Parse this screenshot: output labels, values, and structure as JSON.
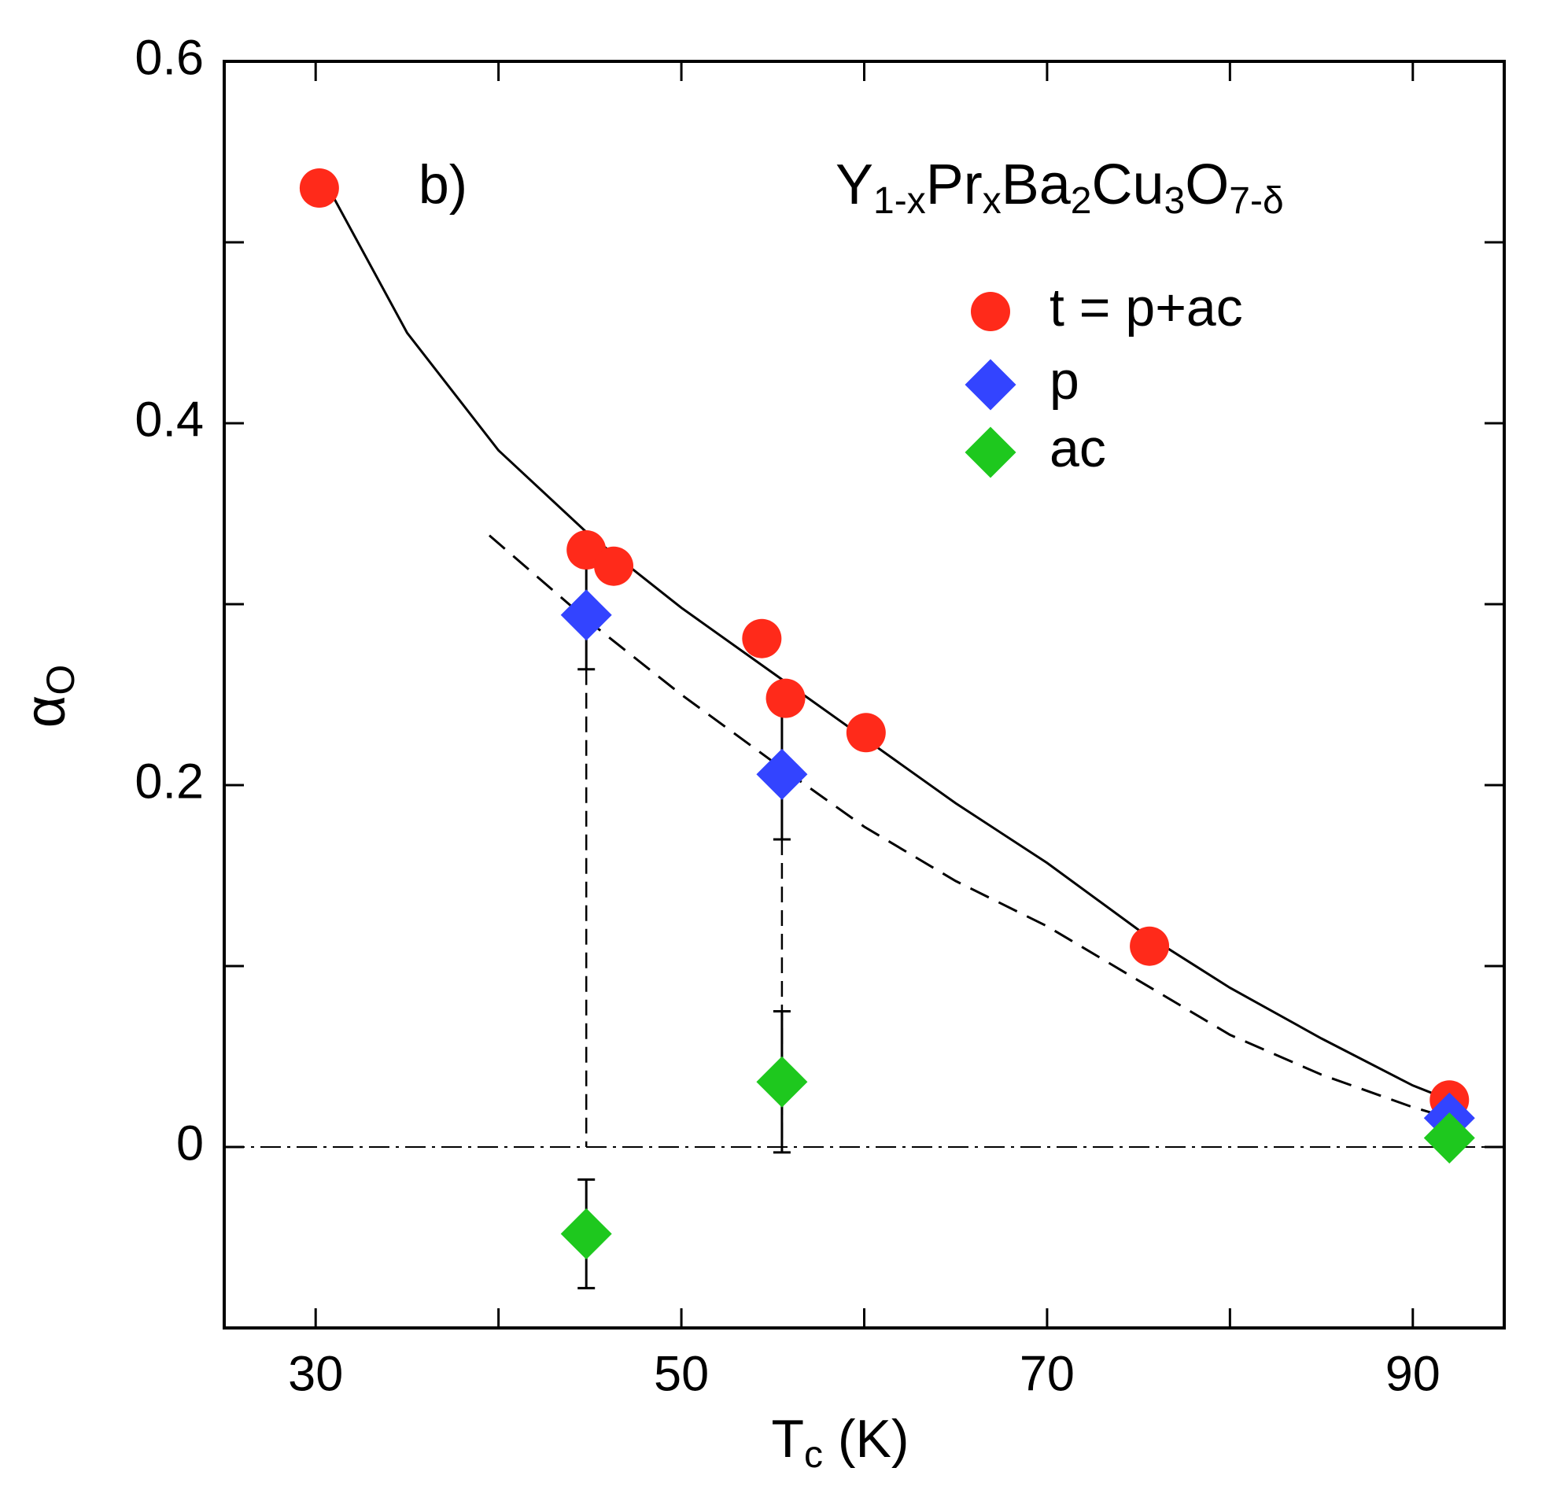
{
  "chart_data": {
    "type": "scatter",
    "panel_label": "b)",
    "formula_parts": [
      {
        "text": "Y",
        "sub": "1-x"
      },
      {
        "text": "Pr",
        "sub": "x"
      },
      {
        "text": "Ba",
        "sub": "2"
      },
      {
        "text": "Cu",
        "sub": "3"
      },
      {
        "text": "O",
        "sub": "7-δ"
      }
    ],
    "xlabel": {
      "text": "T",
      "sub": "c",
      "rest": " (K)"
    },
    "ylabel": {
      "text": "α",
      "sub": "O"
    },
    "xlim": [
      25,
      95
    ],
    "ylim": [
      -0.1,
      0.6
    ],
    "xticks": [
      30,
      50,
      70,
      90
    ],
    "xminor": [
      40,
      60,
      80
    ],
    "yticks": [
      0,
      0.2,
      0.4,
      0.6
    ],
    "yminor": [
      -0.1,
      0.1,
      0.3,
      0.5
    ],
    "zero_line": true,
    "series": [
      {
        "name": "t = p+ac",
        "color": "#ff2a1a",
        "marker": "circle",
        "x": [
          30.2,
          44.8,
          46.3,
          54.4,
          55.7,
          60.1,
          75.6,
          92.0
        ],
        "values": [
          0.53,
          0.33,
          0.321,
          0.281,
          0.248,
          0.229,
          0.111,
          0.026
        ]
      },
      {
        "name": "p",
        "color": "#3344ff",
        "marker": "diamond",
        "x": [
          44.8,
          55.5,
          92.0
        ],
        "values": [
          0.294,
          0.206,
          0.016
        ],
        "errors": [
          0.03,
          0.036,
          null
        ]
      },
      {
        "name": "ac",
        "color": "#1ec81e",
        "marker": "diamond",
        "x": [
          44.8,
          55.5,
          92.0
        ],
        "values": [
          -0.048,
          0.036,
          0.005
        ],
        "errors": [
          0.03,
          0.039,
          null
        ]
      }
    ],
    "curves": [
      {
        "style": "solid",
        "x": [
          30.7,
          35,
          40,
          45,
          50,
          55,
          60,
          65,
          70,
          75,
          80,
          85,
          90,
          92
        ],
        "values": [
          0.53,
          0.45,
          0.385,
          0.338,
          0.298,
          0.262,
          0.226,
          0.19,
          0.157,
          0.12,
          0.088,
          0.06,
          0.034,
          0.026
        ]
      },
      {
        "style": "dashed",
        "x": [
          39.5,
          45,
          50,
          55,
          60,
          65,
          70,
          75,
          80,
          85,
          90,
          92
        ],
        "values": [
          0.338,
          0.29,
          0.25,
          0.213,
          0.177,
          0.147,
          0.122,
          0.092,
          0.062,
          0.04,
          0.022,
          0.016
        ]
      }
    ]
  }
}
